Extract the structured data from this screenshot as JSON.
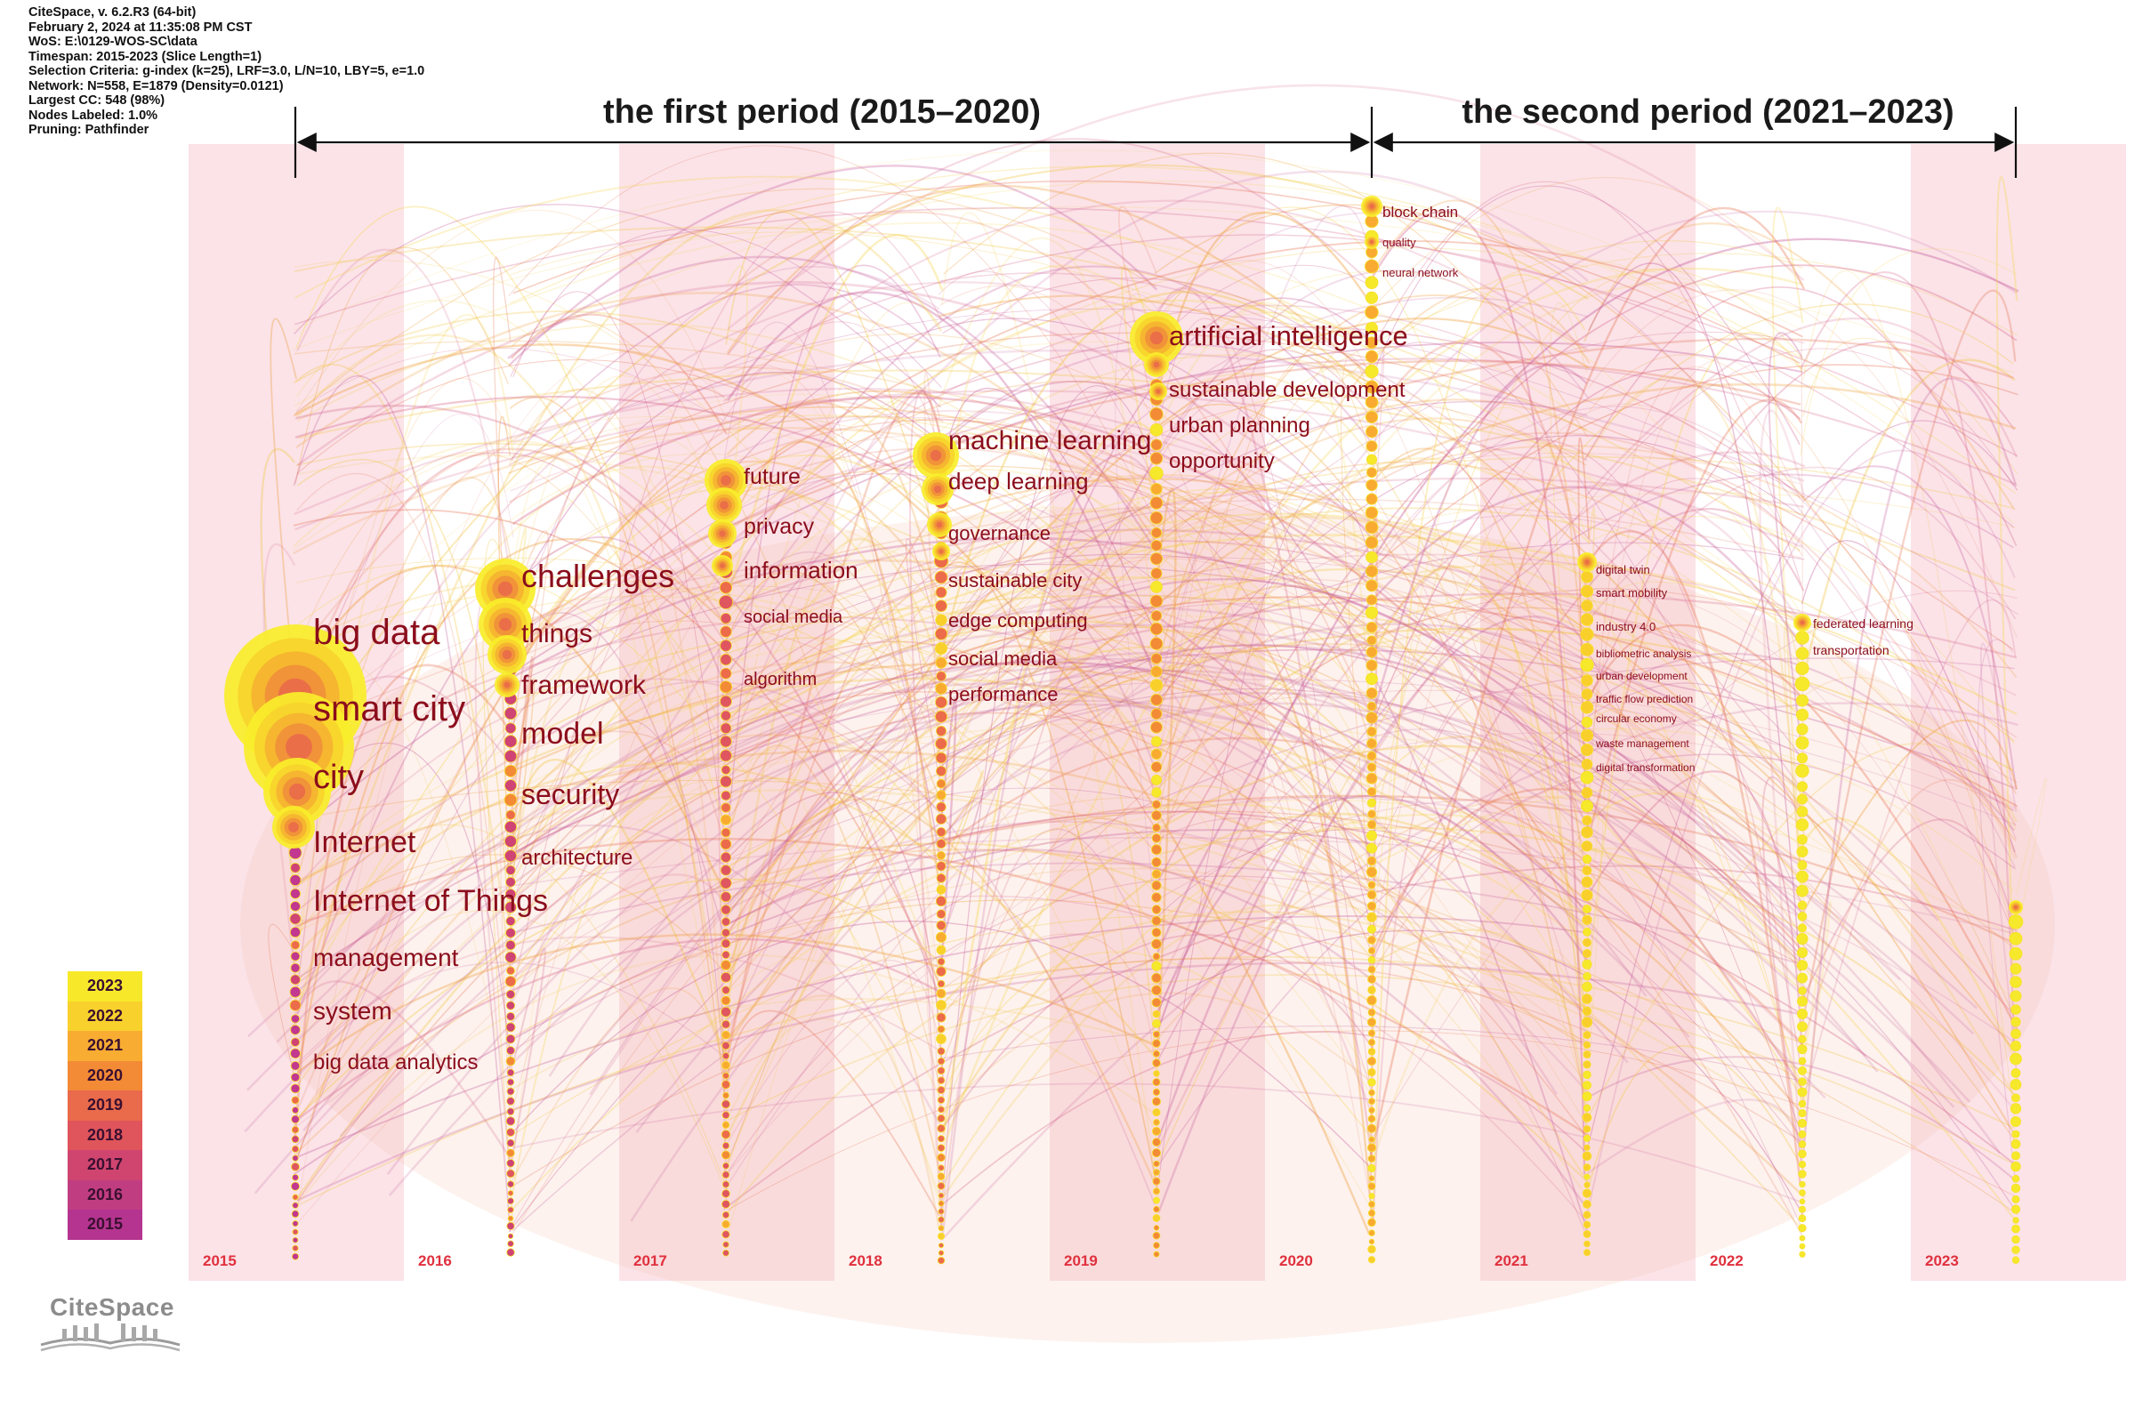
{
  "meta": {
    "app": "CiteSpace, v. 6.2.R3 (64-bit)",
    "date": "February 2, 2024 at 11:35:08 PM CST",
    "wos": "WoS: E:\\0129-WOS-SC\\data",
    "timespan": "Timespan: 2015-2023 (Slice Length=1)",
    "criteria": "Selection Criteria: g-index (k=25), LRF=3.0, L/N=10, LBY=5, e=1.0",
    "network": "Network: N=558, E=1879 (Density=0.0121)",
    "largest_cc": "Largest CC: 548 (98%)",
    "nodes_labeled": "Nodes Labeled: 1.0%",
    "pruning": "Pruning: Pathfinder"
  },
  "periods": [
    {
      "label": "the first period (2015–2020)"
    },
    {
      "label": "the second period (2021–2023)"
    }
  ],
  "years": [
    "2015",
    "2016",
    "2017",
    "2018",
    "2019",
    "2020",
    "2021",
    "2022",
    "2023"
  ],
  "legend": [
    "2023",
    "2022",
    "2021",
    "2020",
    "2019",
    "2018",
    "2017",
    "2016",
    "2015"
  ],
  "colors": {
    "band": "#fbe3e8",
    "year_label": "#e0303e",
    "keyword": "#8b0d1c",
    "period_label": "#1a1a1a",
    "legend": [
      "#f7e92a",
      "#f9d12c",
      "#f8ac32",
      "#f38a36",
      "#ea6a4c",
      "#e0545c",
      "#cf4570",
      "#c13d82",
      "#b4348f"
    ]
  },
  "columns": [
    {
      "year": "2015",
      "keywords": [
        "big data",
        "smart city",
        "city",
        "Internet",
        "Internet of Things",
        "management",
        "system",
        "big data analytics"
      ]
    },
    {
      "year": "2016",
      "keywords": [
        "challenges",
        "things",
        "framework",
        "model",
        "security",
        "architecture"
      ]
    },
    {
      "year": "2017",
      "keywords": [
        "future",
        "privacy",
        "information",
        "social media",
        "algorithm"
      ]
    },
    {
      "year": "2018",
      "keywords": [
        "machine learning",
        "deep learning",
        "governance",
        "sustainable city",
        "edge computing",
        "social media",
        "performance"
      ]
    },
    {
      "year": "2019",
      "keywords": [
        "artificial intelligence",
        "sustainable development",
        "urban planning",
        "opportunity"
      ]
    },
    {
      "year": "2020",
      "keywords": [
        "block chain",
        "quality",
        "neural network"
      ]
    },
    {
      "year": "2021",
      "keywords": [
        "digital twin",
        "smart mobility",
        "industry 4.0",
        "bibliometric analysis",
        "urban development",
        "traffic flow prediction",
        "circular economy",
        "waste management",
        "digital transformation"
      ]
    },
    {
      "year": "2022",
      "keywords": [
        "federated learning",
        "transportation"
      ]
    },
    {
      "year": "2023",
      "keywords": []
    }
  ],
  "logo": {
    "text": "CiteSpace"
  }
}
